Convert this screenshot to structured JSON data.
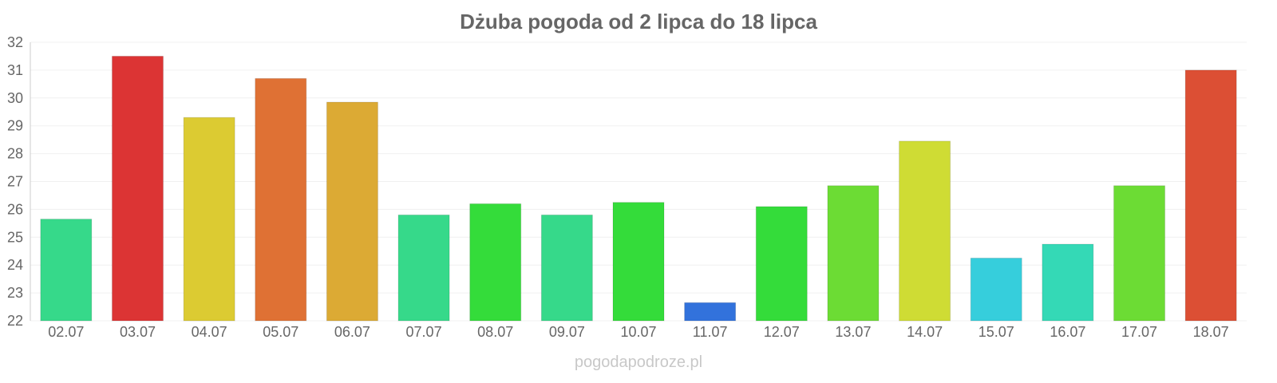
{
  "chart_data": {
    "type": "bar",
    "title": "Dżuba pogoda od 2 lipca do 18 lipca",
    "categories": [
      "02.07",
      "03.07",
      "04.07",
      "05.07",
      "06.07",
      "07.07",
      "08.07",
      "09.07",
      "10.07",
      "11.07",
      "12.07",
      "13.07",
      "14.07",
      "15.07",
      "16.07",
      "17.07",
      "18.07"
    ],
    "values": [
      25.65,
      31.5,
      29.3,
      30.7,
      29.85,
      25.8,
      26.2,
      25.8,
      26.25,
      22.65,
      26.1,
      26.85,
      28.45,
      24.25,
      24.75,
      26.85,
      31.0
    ],
    "colors": [
      "#36d98a",
      "#dc3434",
      "#dccb32",
      "#df7134",
      "#dcaa34",
      "#36d98a",
      "#34dc3a",
      "#36d98a",
      "#34dc3a",
      "#3272dc",
      "#34dc3a",
      "#6cdc34",
      "#cfdc34",
      "#36cedc",
      "#34d9b6",
      "#6cdc34",
      "#dc4f34"
    ],
    "ylim": [
      22,
      32
    ],
    "yticks": [
      "22",
      "23",
      "24",
      "25",
      "26",
      "27",
      "28",
      "29",
      "30",
      "31",
      "32"
    ],
    "grid": true,
    "xlabel": "",
    "ylabel": ""
  },
  "watermark": "pogodapodroze.pl"
}
